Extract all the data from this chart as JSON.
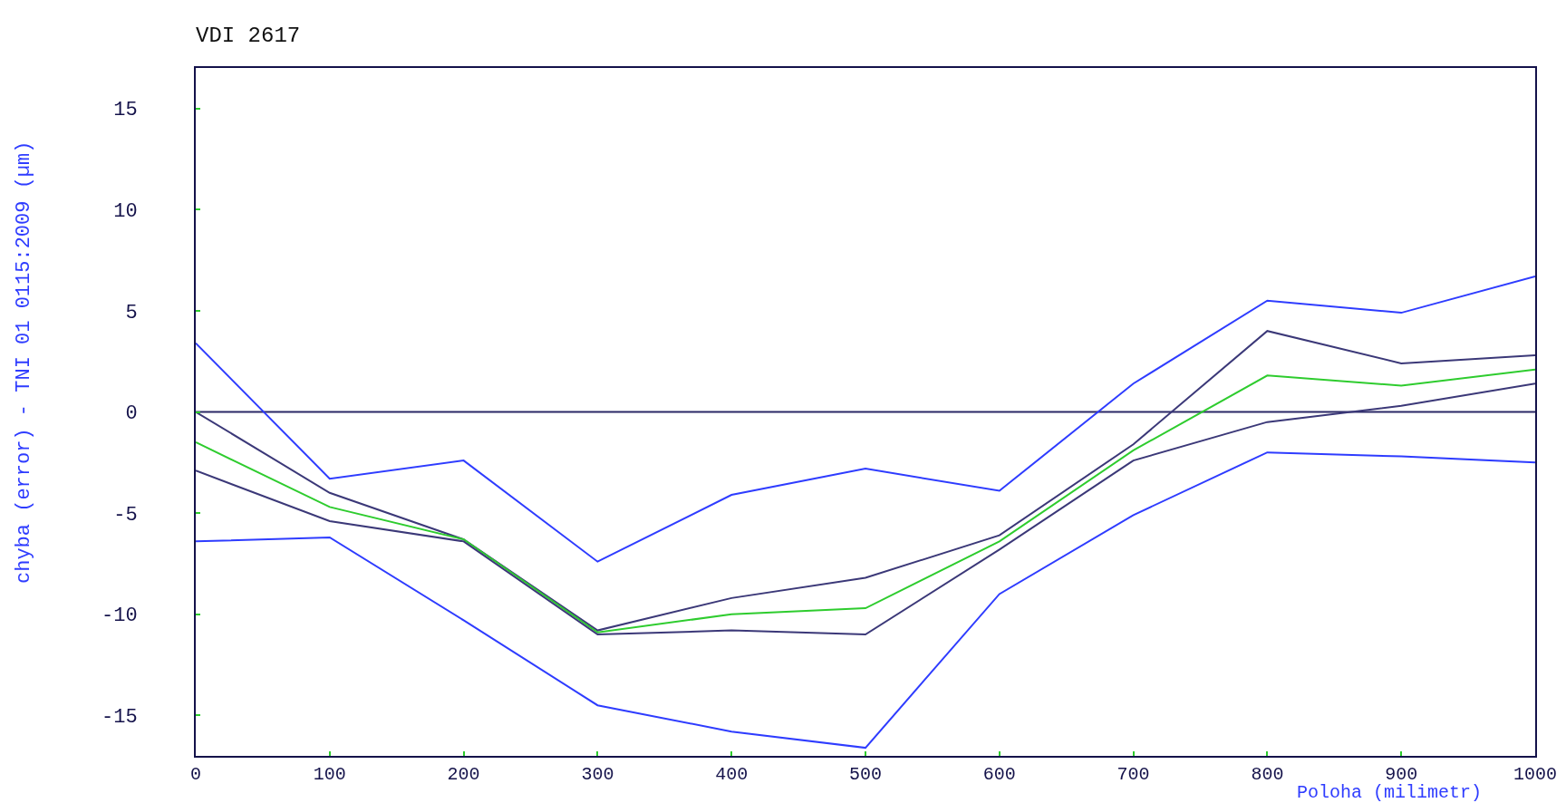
{
  "chart_data": {
    "type": "line",
    "title": "VDI 2617",
    "xlabel": "Poloha (milimetr)",
    "ylabel": "chyba (error) - TNI 01 0115:2009 (µm)",
    "x": [
      0,
      100,
      200,
      300,
      400,
      500,
      600,
      700,
      800,
      900,
      1000
    ],
    "series": [
      {
        "color": "#2e3cff",
        "values": [
          3.4,
          -3.3,
          -2.4,
          -7.4,
          -4.1,
          -2.8,
          -3.9,
          1.4,
          5.5,
          4.9,
          6.7
        ]
      },
      {
        "color": "#3b3878",
        "values": [
          0,
          -4.0,
          -6.3,
          -10.8,
          -9.2,
          -8.2,
          -6.1,
          -1.6,
          4.0,
          2.4,
          2.8
        ]
      },
      {
        "color": "#2ecc2e",
        "values": [
          -1.5,
          -4.7,
          -6.3,
          -10.9,
          -10.0,
          -9.7,
          -6.4,
          -1.9,
          1.8,
          1.3,
          2.1
        ]
      },
      {
        "color": "#3b3878",
        "values": [
          -2.9,
          -5.4,
          -6.4,
          -11.0,
          -10.8,
          -11.0,
          -6.8,
          -2.4,
          -0.5,
          0.3,
          1.4
        ]
      },
      {
        "color": "#2e3cff",
        "values": [
          -6.4,
          -6.2,
          -10.3,
          -14.5,
          -15.8,
          -16.6,
          -9.0,
          -5.1,
          -2.0,
          -2.2,
          -2.5
        ]
      }
    ],
    "xlim": [
      0,
      1000
    ],
    "ylim": [
      -17,
      17
    ],
    "xticks": [
      0,
      100,
      200,
      300,
      400,
      500,
      600,
      700,
      800,
      900,
      1000
    ],
    "yticks": [
      -15,
      -10,
      -5,
      0,
      5,
      10,
      15
    ],
    "ref_lines": [
      {
        "axis": "y",
        "value": 0,
        "color": "#2a2866"
      }
    ]
  }
}
